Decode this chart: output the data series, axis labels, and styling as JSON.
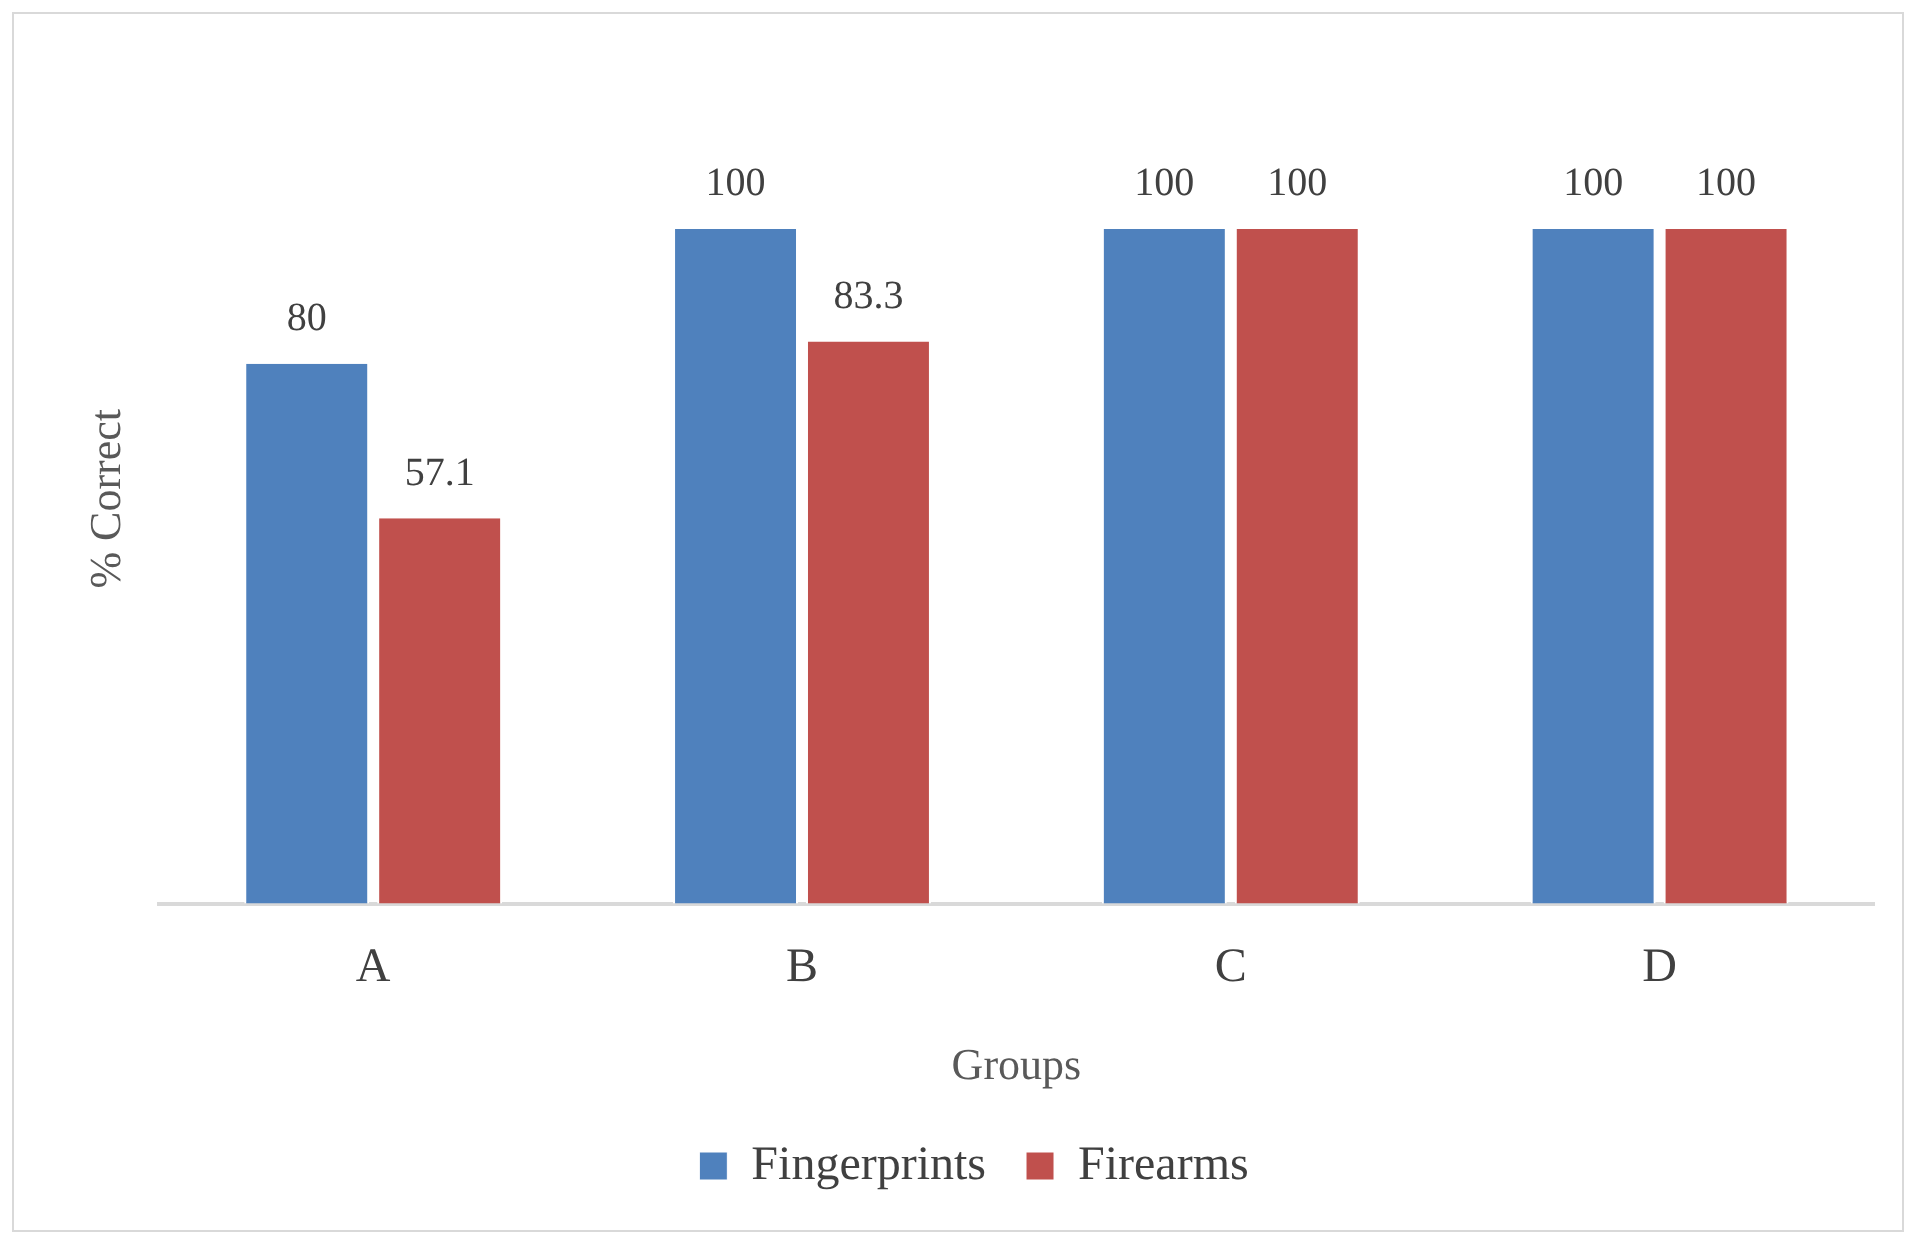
{
  "chart_data": {
    "type": "bar",
    "xlabel": "Groups",
    "ylabel": "% Correct",
    "categories": [
      "A",
      "B",
      "C",
      "D"
    ],
    "series": [
      {
        "name": "Fingerprints",
        "color": "#4f81bd",
        "values": [
          80,
          100,
          100,
          100
        ]
      },
      {
        "name": "Firearms",
        "color": "#c0504d",
        "values": [
          57.1,
          83.3,
          100,
          100
        ]
      }
    ],
    "data_labels": true,
    "legend": "bottom",
    "grid": false
  }
}
